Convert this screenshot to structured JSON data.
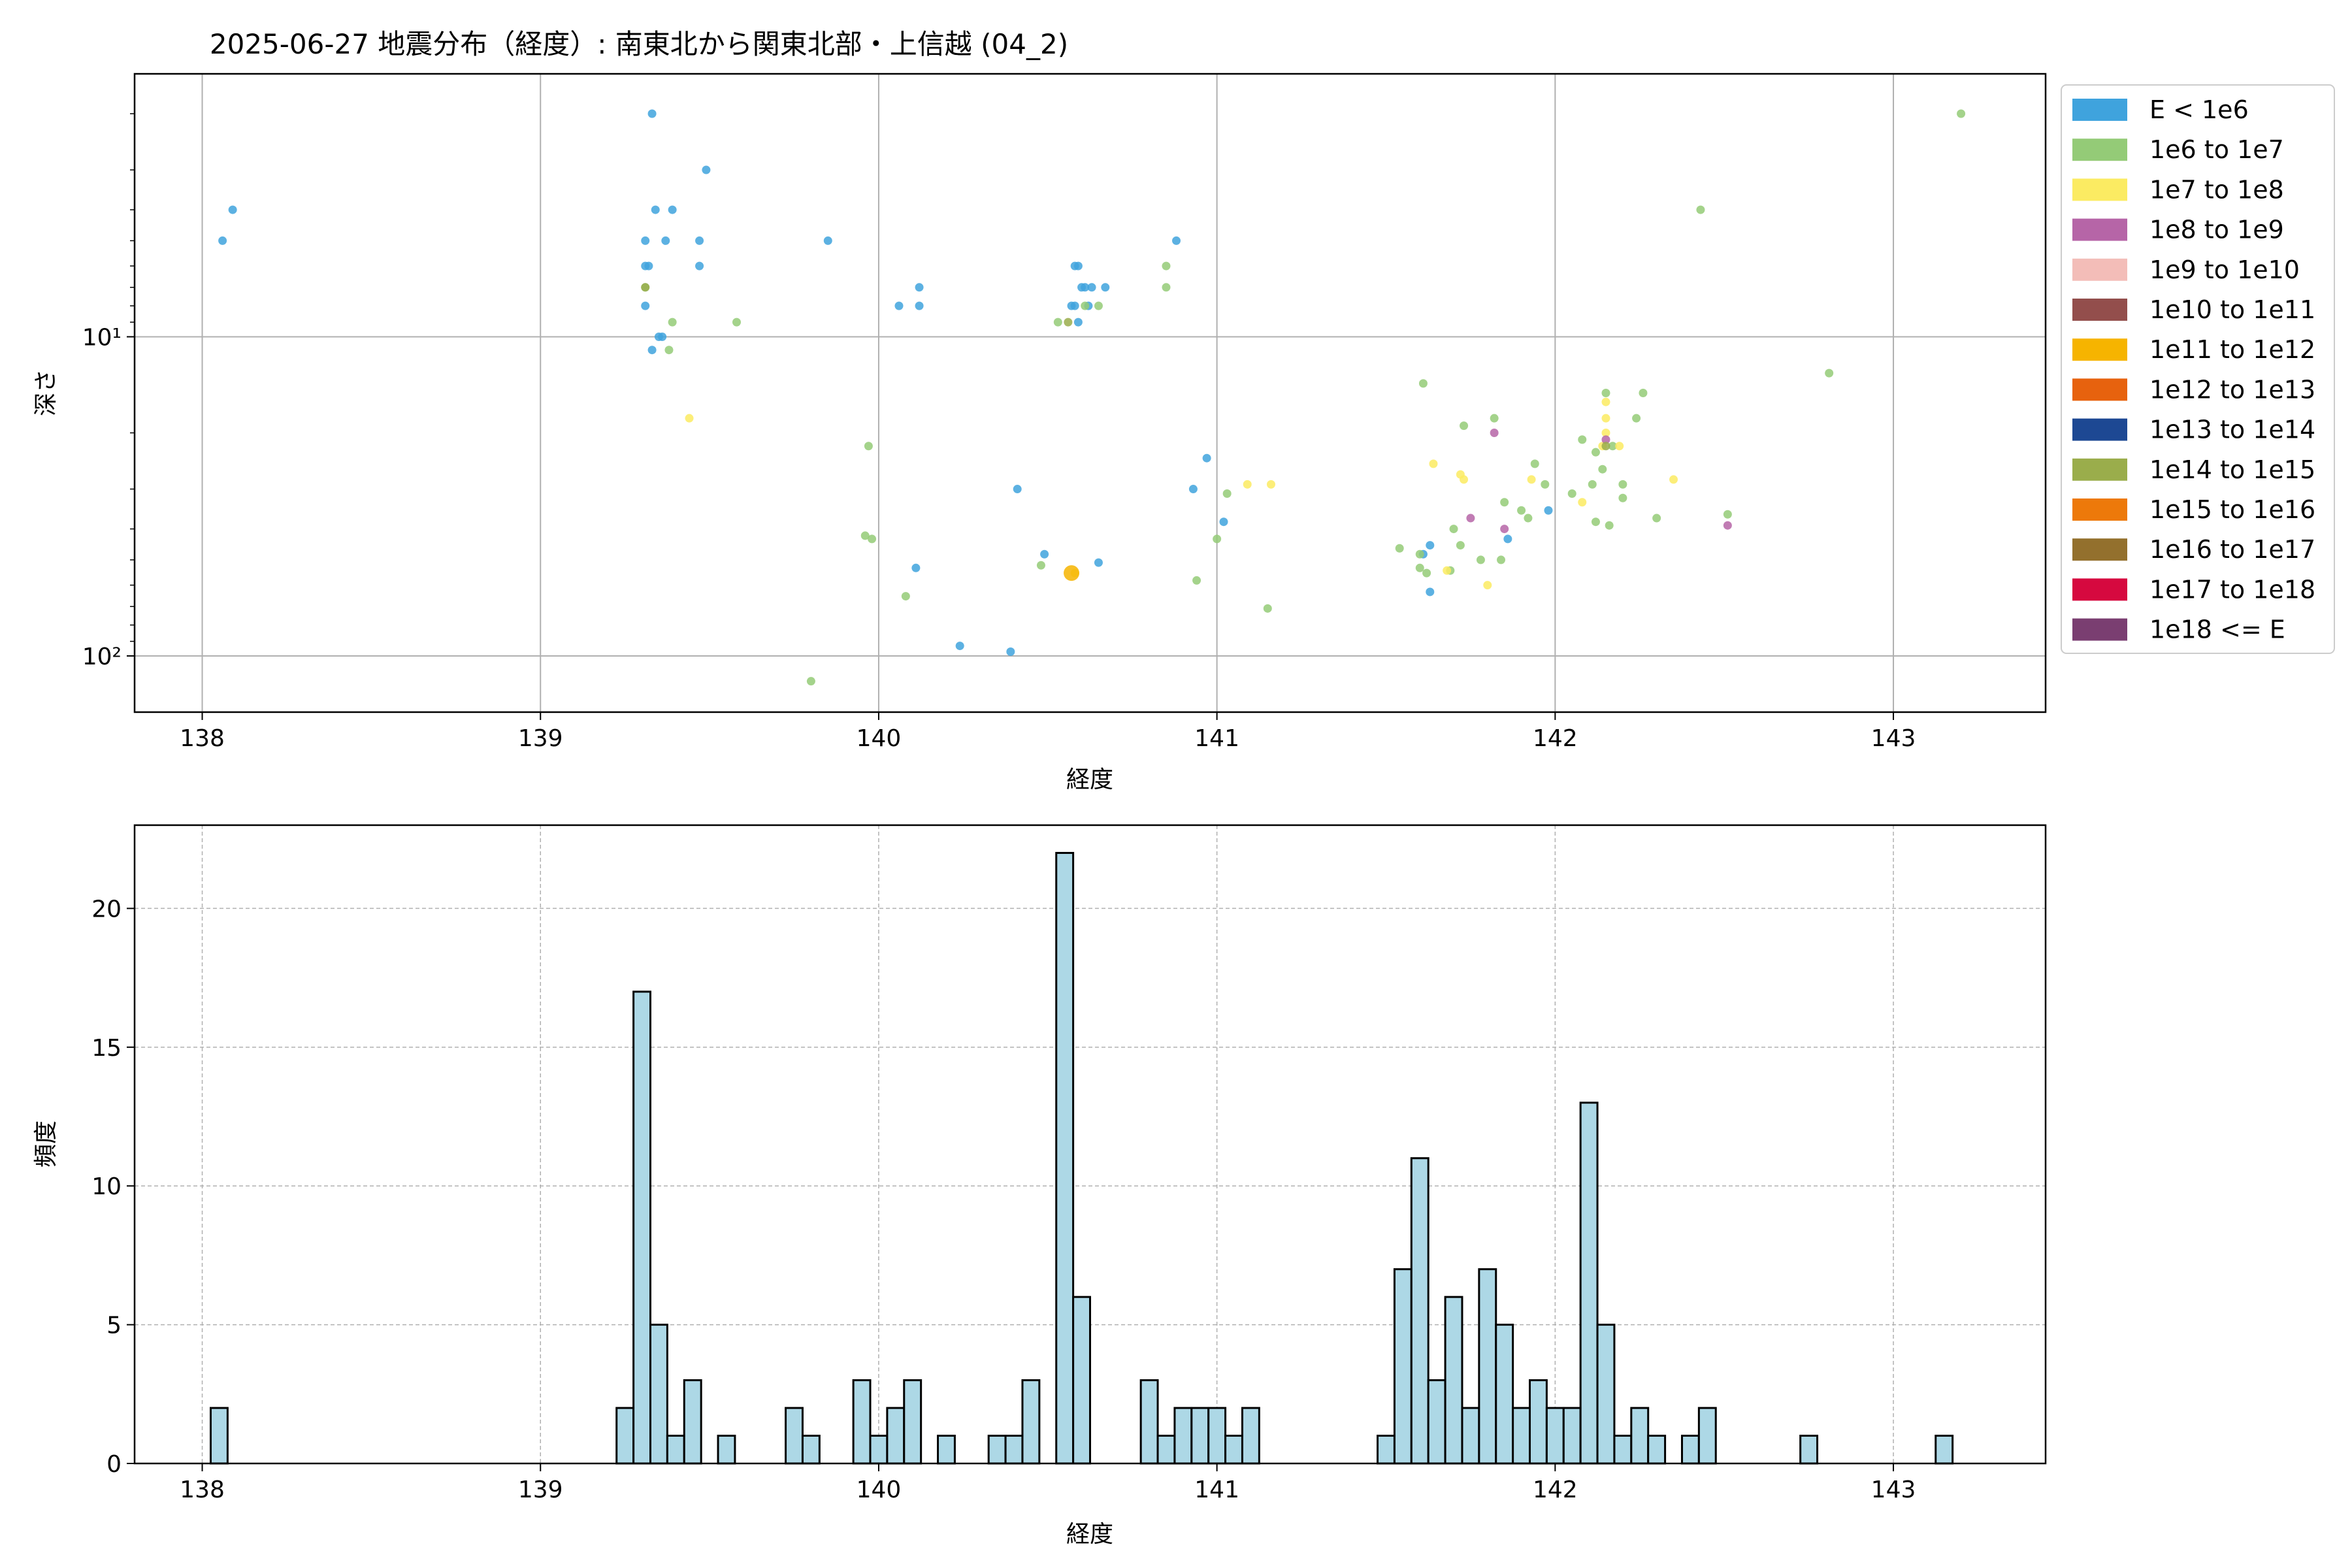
{
  "chart_data": [
    {
      "type": "scatter",
      "title": "2025-06-27 地震分布（経度）: 南東北から関東北部・上信越 (04_2)",
      "xlabel": "経度",
      "ylabel": "深さ",
      "xlim": [
        137.8,
        143.45
      ],
      "y_scale": "log",
      "y_inverted": true,
      "ylim": [
        1.5,
        150
      ],
      "x_ticks": [
        138,
        139,
        140,
        141,
        142,
        143
      ],
      "y_ticks": [
        {
          "value": 10,
          "label": "10¹"
        },
        {
          "value": 100,
          "label": "10²"
        }
      ],
      "grid": true,
      "legend": {
        "placement": "outside-right",
        "entries": [
          {
            "label": "E < 1e6",
            "color": "#3fa3dd"
          },
          {
            "label": "1e6 to 1e7",
            "color": "#94cb77"
          },
          {
            "label": "1e7 to 1e8",
            "color": "#fbeb62"
          },
          {
            "label": "1e8 to 1e9",
            "color": "#b665a7"
          },
          {
            "label": "1e9 to 1e10",
            "color": "#f3bdb8"
          },
          {
            "label": "1e10 to 1e11",
            "color": "#934e4c"
          },
          {
            "label": "1e11 to 1e12",
            "color": "#f6b400"
          },
          {
            "label": "1e12 to 1e13",
            "color": "#e7620e"
          },
          {
            "label": "1e13 to 1e14",
            "color": "#1d4893"
          },
          {
            "label": "1e14 to 1e15",
            "color": "#9aad4b"
          },
          {
            "label": "1e15 to 1e16",
            "color": "#ed790a"
          },
          {
            "label": "1e16 to 1e17",
            "color": "#93702d"
          },
          {
            "label": "1e17 to 1e18",
            "color": "#d6093f"
          },
          {
            "label": "1e18 <= E",
            "color": "#7a3e71"
          }
        ]
      },
      "series": [
        {
          "color": "#3fa3dd",
          "points": [
            [
              138.06,
              5
            ],
            [
              138.09,
              4
            ],
            [
              139.33,
              2
            ],
            [
              139.49,
              3
            ],
            [
              139.34,
              4
            ],
            [
              139.39,
              4
            ],
            [
              139.31,
              5
            ],
            [
              139.37,
              5
            ],
            [
              139.47,
              5
            ],
            [
              139.31,
              6
            ],
            [
              139.32,
              6
            ],
            [
              139.47,
              6
            ],
            [
              139.31,
              8
            ],
            [
              139.36,
              10
            ],
            [
              139.35,
              10
            ],
            [
              139.33,
              11
            ],
            [
              139.85,
              5
            ],
            [
              140.06,
              8
            ],
            [
              140.12,
              7
            ],
            [
              140.12,
              8
            ],
            [
              140.58,
              6
            ],
            [
              140.59,
              6
            ],
            [
              140.6,
              7
            ],
            [
              140.61,
              7
            ],
            [
              140.63,
              7
            ],
            [
              140.67,
              7
            ],
            [
              140.57,
              8
            ],
            [
              140.58,
              8
            ],
            [
              140.62,
              8
            ],
            [
              140.59,
              9
            ],
            [
              140.88,
              5
            ],
            [
              140.97,
              24
            ],
            [
              140.93,
              30
            ],
            [
              141.02,
              38
            ],
            [
              140.41,
              30
            ],
            [
              140.49,
              48
            ],
            [
              140.11,
              53
            ],
            [
              140.65,
              51
            ],
            [
              140.24,
              93
            ],
            [
              140.39,
              97
            ],
            [
              141.63,
              45
            ],
            [
              141.61,
              48
            ],
            [
              141.63,
              63
            ],
            [
              141.86,
              43
            ],
            [
              141.98,
              35
            ]
          ]
        },
        {
          "color": "#94cb77",
          "points": [
            [
              139.31,
              7
            ],
            [
              139.39,
              9
            ],
            [
              139.58,
              9
            ],
            [
              139.38,
              11
            ],
            [
              139.97,
              22
            ],
            [
              139.96,
              42
            ],
            [
              139.98,
              43
            ],
            [
              140.08,
              65
            ],
            [
              140.48,
              52
            ],
            [
              140.53,
              9
            ],
            [
              140.61,
              8
            ],
            [
              140.65,
              8
            ],
            [
              140.85,
              6
            ],
            [
              140.85,
              7
            ],
            [
              141,
              43
            ],
            [
              141.03,
              31
            ],
            [
              140.94,
              58
            ],
            [
              141.15,
              71
            ],
            [
              139.8,
              120
            ],
            [
              141.61,
              14
            ],
            [
              141.73,
              19
            ],
            [
              141.82,
              18
            ],
            [
              141.94,
              25
            ],
            [
              141.97,
              29
            ],
            [
              142.08,
              21
            ],
            [
              142.15,
              15
            ],
            [
              142.26,
              15
            ],
            [
              142.43,
              4
            ],
            [
              143.2,
              2
            ],
            [
              142.81,
              13
            ],
            [
              142.12,
              23
            ],
            [
              142.17,
              22
            ],
            [
              142.24,
              18
            ],
            [
              142.2,
              29
            ],
            [
              142.2,
              32
            ],
            [
              142.14,
              26
            ],
            [
              142.12,
              38
            ],
            [
              142.16,
              39
            ],
            [
              142.3,
              37
            ],
            [
              142.51,
              36
            ],
            [
              141.54,
              46
            ],
            [
              141.6,
              48
            ],
            [
              141.62,
              55
            ],
            [
              141.7,
              40
            ],
            [
              141.72,
              45
            ],
            [
              141.78,
              50
            ],
            [
              141.85,
              33
            ],
            [
              141.9,
              35
            ],
            [
              141.92,
              37
            ],
            [
              141.84,
              50
            ],
            [
              142.05,
              31
            ],
            [
              142.11,
              29
            ],
            [
              141.69,
              54
            ],
            [
              141.6,
              53
            ]
          ]
        },
        {
          "color": "#fbeb62",
          "points": [
            [
              139.44,
              18
            ],
            [
              140.58,
              55
            ],
            [
              141.09,
              29
            ],
            [
              141.16,
              29
            ],
            [
              141.64,
              25
            ],
            [
              141.72,
              27
            ],
            [
              141.73,
              28
            ],
            [
              141.68,
              54
            ],
            [
              141.8,
              60
            ],
            [
              141.93,
              28
            ],
            [
              142.08,
              33
            ],
            [
              142.15,
              16
            ],
            [
              142.15,
              18
            ],
            [
              142.15,
              20
            ],
            [
              142.19,
              22
            ],
            [
              142.14,
              22
            ],
            [
              142.35,
              28
            ]
          ]
        },
        {
          "color": "#b665a7",
          "points": [
            [
              141.82,
              20
            ],
            [
              141.75,
              37
            ],
            [
              141.85,
              40
            ],
            [
              142.15,
              21
            ],
            [
              142.51,
              39
            ]
          ]
        },
        {
          "color": "#9aad4b",
          "points": [
            [
              139.31,
              7
            ],
            [
              140.56,
              9
            ],
            [
              142.15,
              22
            ]
          ]
        },
        {
          "color": "#f6b400",
          "big": true,
          "points": [
            [
              140.57,
              55
            ]
          ]
        }
      ]
    },
    {
      "type": "bar",
      "xlabel": "経度",
      "ylabel": "頻度",
      "xlim": [
        137.8,
        143.45
      ],
      "ylim": [
        0,
        23
      ],
      "x_ticks": [
        138,
        139,
        140,
        141,
        142,
        143
      ],
      "y_ticks": [
        0,
        5,
        10,
        15,
        20
      ],
      "bin_width": 0.05,
      "grid": true,
      "bins": [
        {
          "x": 138.05,
          "count": 2
        },
        {
          "x": 139.25,
          "count": 2
        },
        {
          "x": 139.3,
          "count": 17
        },
        {
          "x": 139.35,
          "count": 5
        },
        {
          "x": 139.4,
          "count": 1
        },
        {
          "x": 139.45,
          "count": 3
        },
        {
          "x": 139.55,
          "count": 1
        },
        {
          "x": 139.75,
          "count": 2
        },
        {
          "x": 139.8,
          "count": 1
        },
        {
          "x": 139.95,
          "count": 3
        },
        {
          "x": 140.0,
          "count": 1
        },
        {
          "x": 140.05,
          "count": 2
        },
        {
          "x": 140.1,
          "count": 3
        },
        {
          "x": 140.2,
          "count": 1
        },
        {
          "x": 140.35,
          "count": 1
        },
        {
          "x": 140.4,
          "count": 1
        },
        {
          "x": 140.45,
          "count": 3
        },
        {
          "x": 140.55,
          "count": 22
        },
        {
          "x": 140.6,
          "count": 6
        },
        {
          "x": 140.8,
          "count": 3
        },
        {
          "x": 140.85,
          "count": 1
        },
        {
          "x": 140.9,
          "count": 2
        },
        {
          "x": 140.95,
          "count": 2
        },
        {
          "x": 141.0,
          "count": 2
        },
        {
          "x": 141.05,
          "count": 1
        },
        {
          "x": 141.1,
          "count": 2
        },
        {
          "x": 141.5,
          "count": 1
        },
        {
          "x": 141.55,
          "count": 7
        },
        {
          "x": 141.6,
          "count": 11
        },
        {
          "x": 141.65,
          "count": 3
        },
        {
          "x": 141.7,
          "count": 6
        },
        {
          "x": 141.75,
          "count": 2
        },
        {
          "x": 141.8,
          "count": 7
        },
        {
          "x": 141.85,
          "count": 5
        },
        {
          "x": 141.9,
          "count": 2
        },
        {
          "x": 141.95,
          "count": 3
        },
        {
          "x": 142.0,
          "count": 2
        },
        {
          "x": 142.05,
          "count": 2
        },
        {
          "x": 142.1,
          "count": 13
        },
        {
          "x": 142.15,
          "count": 5
        },
        {
          "x": 142.2,
          "count": 1
        },
        {
          "x": 142.25,
          "count": 2
        },
        {
          "x": 142.3,
          "count": 1
        },
        {
          "x": 142.4,
          "count": 1
        },
        {
          "x": 142.45,
          "count": 2
        },
        {
          "x": 142.75,
          "count": 1
        },
        {
          "x": 143.15,
          "count": 1
        }
      ]
    }
  ]
}
